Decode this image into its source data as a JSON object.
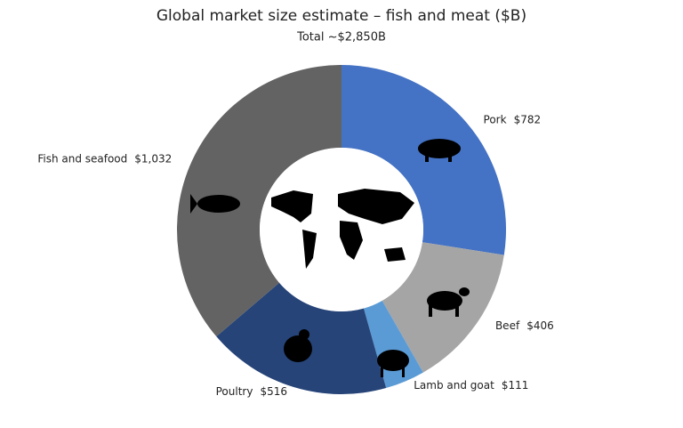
{
  "chart_data": {
    "type": "donut",
    "title": "Global market size estimate – fish and meat ($B)",
    "subtitle": "Total ~$2,850B",
    "categories": [
      "Pork",
      "Beef",
      "Lamb and goat",
      "Poultry",
      "Fish and seafood"
    ],
    "values": [
      782,
      406,
      111,
      516,
      1032
    ],
    "value_labels": [
      "$782",
      "$406",
      "$111",
      "$516",
      "$1,032"
    ],
    "colors": [
      "#4472c4",
      "#a5a5a5",
      "#5b9bd5",
      "#264478",
      "#636363"
    ]
  }
}
